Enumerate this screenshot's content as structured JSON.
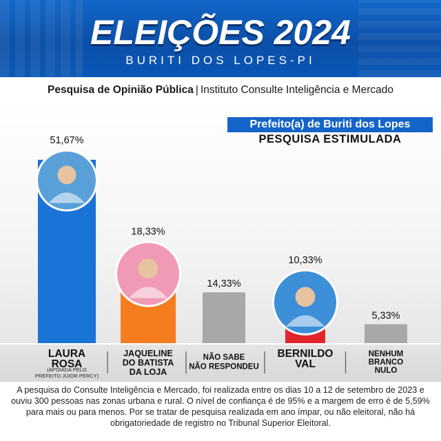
{
  "header": {
    "title": "ELEIÇÕES 2024",
    "subtitle": "BURITI DOS LOPES-PI"
  },
  "survey": {
    "title_bold": "Pesquisa de Opinião Pública",
    "separator": "|",
    "institute": "Instituto Consulte Inteligência e Mercado",
    "position": "Prefeito(a) de Buriti dos Lopes",
    "type": "PESQUISA ESTIMULADA"
  },
  "chart_data": {
    "type": "bar",
    "categories": [
      "LAURA ROSA",
      "JAQUELINE DO BATISTA DA LOJA",
      "NÃO SABE NÃO RESPONDEU",
      "BERNILDO VAL",
      "NENHUM BRANCO NULO"
    ],
    "values": [
      51.67,
      18.33,
      14.33,
      10.33,
      5.33
    ],
    "value_labels": [
      "51,67%",
      "18,33%",
      "14,33%",
      "10,33%",
      "5,33%"
    ],
    "label_lines": [
      [
        "LAURA",
        "ROSA"
      ],
      [
        "JAQUELINE",
        "DO BATISTA",
        "DA LOJA"
      ],
      [
        "NÃO SABE",
        "NÃO RESPONDEU"
      ],
      [
        "BERNILDO",
        "VAL"
      ],
      [
        "NENHUM",
        "BRANCO",
        "NULO"
      ]
    ],
    "notes": [
      "(APOIADA PELO",
      "PREFEITO JÚIOR PERCY)",
      "",
      "",
      "",
      ""
    ],
    "colors": [
      "#1a73d6",
      "#f57c1f",
      "#a8a8a8",
      "#e1262b",
      "#a8a8a8"
    ],
    "photo_colors": [
      "#5aa0d8",
      "#f19ab5",
      null,
      "#3d8fd8",
      null
    ],
    "title": "Prefeito(a) de Buriti dos Lopes",
    "xlabel": "",
    "ylabel": "",
    "ylim": [
      0,
      60
    ],
    "grid": false,
    "legend": "none"
  },
  "footer": {
    "text": "A pesquisa do Consulte Inteligência e Mercado, foi realizada entre os dias 10 a 12 de setembro de 2023 e ouviu 300 pessoas nas zonas urbana e rural. O nível de confiança é de 95% e a margem de erro é de 5,59% para mais ou para menos. Por se tratar de pesquisa realizada em ano ímpar, ou não eleitoral, não há obrigatoriedade de registro no Tribunal Superior Eleitoral."
  }
}
